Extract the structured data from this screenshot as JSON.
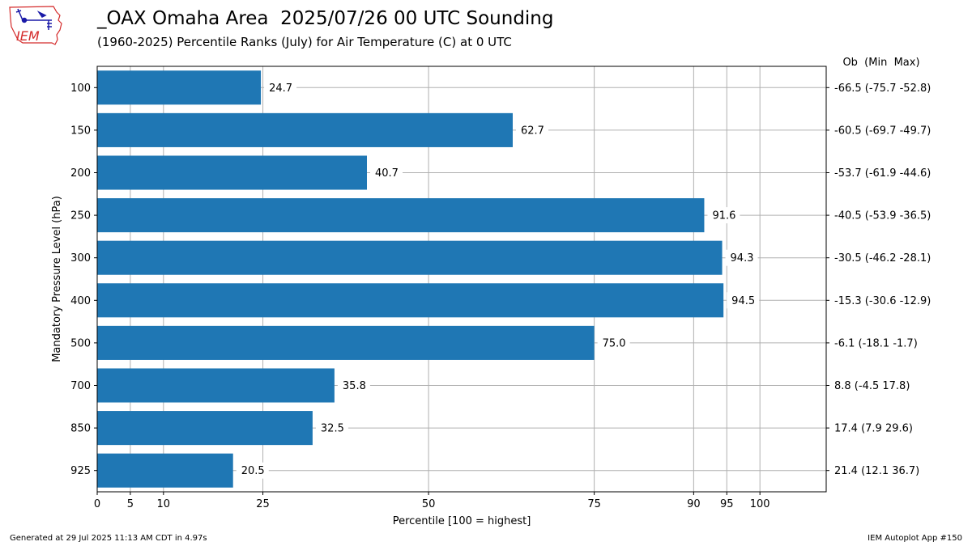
{
  "header": {
    "title": "_OAX Omaha Area  2025/07/26 00 UTC Sounding",
    "subtitle": "(1960-2025) Percentile Ranks (July) for Air Temperature (C) at 0 UTC",
    "logo_text": "IEM"
  },
  "footer": {
    "generated": "Generated at 29 Jul 2025 11:13 AM CDT in 4.97s",
    "app": "IEM Autoplot App #150"
  },
  "colors": {
    "bar": "#1f77b4",
    "grid": "#b0b0b0",
    "logo_red": "#d42a2a",
    "logo_blue": "#1a1aa8"
  },
  "chart_data": {
    "type": "bar",
    "orientation": "horizontal",
    "categories": [
      "100",
      "150",
      "200",
      "250",
      "300",
      "400",
      "500",
      "700",
      "850",
      "925"
    ],
    "values": [
      24.7,
      62.7,
      40.7,
      91.6,
      94.3,
      94.5,
      75.0,
      35.8,
      32.5,
      20.5
    ],
    "data_labels": [
      "24.7",
      "62.7",
      "40.7",
      "91.6",
      "94.3",
      "94.5",
      "75.0",
      "35.8",
      "32.5",
      "20.5"
    ],
    "right_labels": [
      "-66.5 (-75.7 -52.8)",
      "-60.5 (-69.7 -49.7)",
      "-53.7 (-61.9 -44.6)",
      "-40.5 (-53.9 -36.5)",
      "-30.5 (-46.2 -28.1)",
      "-15.3 (-30.6 -12.9)",
      "-6.1 (-18.1 -1.7)",
      "8.8 (-4.5 17.8)",
      "17.4 (7.9 29.6)",
      "21.4 (12.1 36.7)"
    ],
    "right_header": "Ob  (Min  Max)",
    "xlabel": "Percentile [100 = highest]",
    "ylabel": "Mandatory Pressure Level (hPa)",
    "xticks": [
      0,
      5,
      10,
      25,
      50,
      75,
      90,
      95,
      100
    ],
    "xlim": [
      0,
      110
    ],
    "grid": true
  }
}
